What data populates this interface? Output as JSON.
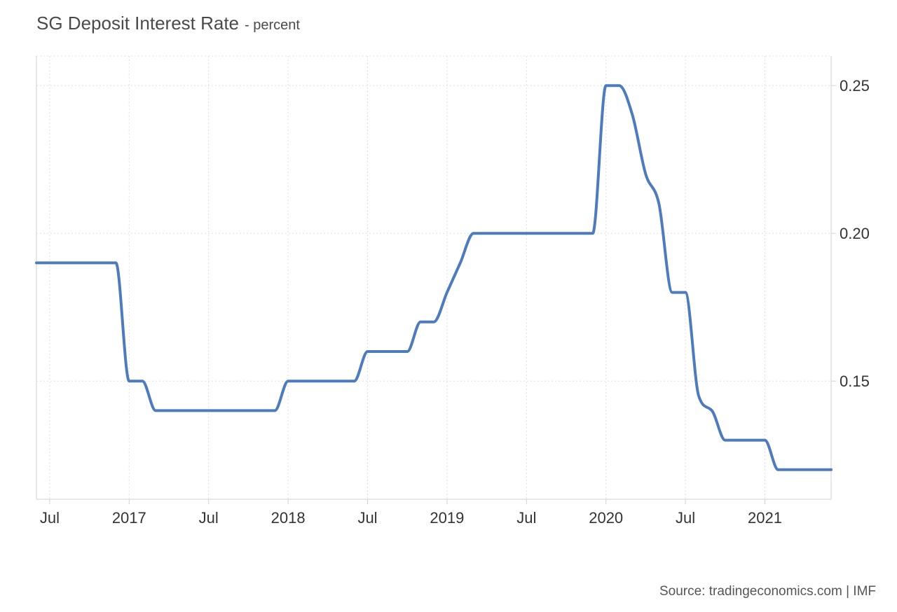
{
  "header": {
    "title": "SG Deposit Interest Rate",
    "subtitle": "- percent"
  },
  "footer": {
    "source": "Source: tradingeconomics.com | IMF"
  },
  "chart_data": {
    "type": "line",
    "title": "SG Deposit Interest Rate",
    "subtitle": "- percent",
    "unit": "percent",
    "xlabel": "",
    "ylabel": "",
    "grid": "dotted",
    "legend_position": "none",
    "x_range": [
      "2016-06",
      "2021-06"
    ],
    "ylim": [
      0.11,
      0.26
    ],
    "x": [
      "2016-06",
      "2016-07",
      "2016-08",
      "2016-09",
      "2016-10",
      "2016-11",
      "2016-12",
      "2017-01",
      "2017-02",
      "2017-03",
      "2017-04",
      "2017-05",
      "2017-06",
      "2017-07",
      "2017-08",
      "2017-09",
      "2017-10",
      "2017-11",
      "2017-12",
      "2018-01",
      "2018-02",
      "2018-03",
      "2018-04",
      "2018-05",
      "2018-06",
      "2018-07",
      "2018-08",
      "2018-09",
      "2018-10",
      "2018-11",
      "2018-12",
      "2019-01",
      "2019-02",
      "2019-03",
      "2019-04",
      "2019-05",
      "2019-06",
      "2019-07",
      "2019-08",
      "2019-09",
      "2019-10",
      "2019-11",
      "2019-12",
      "2020-01",
      "2020-02",
      "2020-03",
      "2020-04",
      "2020-05",
      "2020-06",
      "2020-07",
      "2020-08",
      "2020-09",
      "2020-10",
      "2020-11",
      "2020-12",
      "2021-01",
      "2021-02",
      "2021-03",
      "2021-04",
      "2021-05",
      "2021-06"
    ],
    "values": [
      0.19,
      0.19,
      0.19,
      0.19,
      0.19,
      0.19,
      0.19,
      0.15,
      0.15,
      0.14,
      0.14,
      0.14,
      0.14,
      0.14,
      0.14,
      0.14,
      0.14,
      0.14,
      0.14,
      0.15,
      0.15,
      0.15,
      0.15,
      0.15,
      0.15,
      0.16,
      0.16,
      0.16,
      0.16,
      0.17,
      0.17,
      0.18,
      0.19,
      0.2,
      0.2,
      0.2,
      0.2,
      0.2,
      0.2,
      0.2,
      0.2,
      0.2,
      0.2,
      0.25,
      0.25,
      0.24,
      0.22,
      0.21,
      0.18,
      0.18,
      0.145,
      0.14,
      0.13,
      0.13,
      0.13,
      0.13,
      0.12,
      0.12,
      0.12,
      0.12,
      0.12
    ],
    "x_tick_indices": [
      1,
      7,
      13,
      19,
      25,
      31,
      37,
      43,
      49,
      55
    ],
    "x_tick_labels": [
      "Jul",
      "2017",
      "Jul",
      "2018",
      "Jul",
      "2019",
      "Jul",
      "2020",
      "Jul",
      "2021"
    ],
    "y_ticks": [
      0.15,
      0.2,
      0.25
    ],
    "y_tick_labels": [
      "0.15",
      "0.20",
      "0.25"
    ],
    "colors": {
      "line": "#4d7bbe",
      "grid": "#e0e0e0",
      "axis_border": "#d2d2d2",
      "tick_text": "#333333",
      "title_text": "#4a4a4a",
      "source_text": "#555555",
      "background": "#ffffff"
    }
  }
}
